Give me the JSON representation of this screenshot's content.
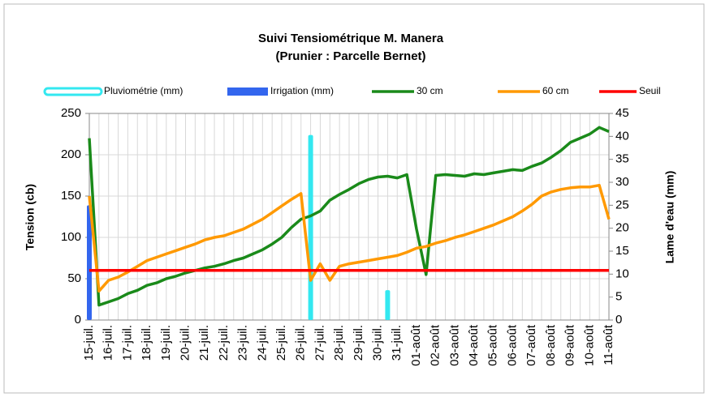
{
  "chart_data": {
    "type": "combo",
    "title": "Suivi Tensiométrique M. Manera",
    "subtitle": "(Prunier : Parcelle Bernet)",
    "y_label": "Tension (cb)",
    "y2_label": "Lame d'eau (mm)",
    "categories": [
      "15-juil.",
      null,
      "16-juil.",
      null,
      "17-juil.",
      null,
      "18-juil.",
      null,
      "19-juil.",
      null,
      "20-juil.",
      null,
      "21-juil.",
      null,
      "22-juil.",
      null,
      "23-juil.",
      null,
      "24-juil.",
      null,
      "25-juil.",
      null,
      "26-juil.",
      null,
      "27-juil.",
      null,
      "28-juil.",
      null,
      "29-juil.",
      null,
      "30-juil.",
      null,
      "31-juil.",
      null,
      "01-août",
      null,
      "02-août",
      null,
      "03-août",
      null,
      "04-août",
      null,
      "05-août",
      null,
      "06-août",
      null,
      "07-août",
      null,
      "08-août",
      null,
      "09-août",
      null,
      "10-août",
      null,
      "11-août"
    ],
    "ylim": [
      0,
      250
    ],
    "yticks": [
      0,
      50,
      100,
      150,
      200,
      250
    ],
    "y2lim": [
      0,
      45
    ],
    "y2ticks": [
      0,
      5,
      10,
      15,
      20,
      25,
      30,
      35,
      40,
      45
    ],
    "grid": true,
    "legend": "top",
    "series": [
      {
        "name": "Pluviométrie (mm)",
        "kind": "bar",
        "axis": "y2",
        "color": "#33e8f0",
        "values": [
          null,
          null,
          null,
          null,
          null,
          null,
          null,
          null,
          null,
          null,
          null,
          null,
          null,
          null,
          null,
          null,
          null,
          null,
          null,
          null,
          null,
          null,
          null,
          40.3,
          null,
          null,
          null,
          null,
          null,
          null,
          null,
          6.5,
          null,
          null,
          null,
          null,
          null,
          null,
          null,
          null,
          null,
          null,
          null,
          null,
          null,
          null,
          null,
          null,
          null,
          null,
          null,
          null,
          null,
          null,
          null
        ]
      },
      {
        "name": "Irrigation (mm)",
        "kind": "bar",
        "axis": "y2",
        "color": "#3366ee",
        "values": [
          25,
          null,
          null,
          null,
          null,
          null,
          null,
          null,
          null,
          null,
          null,
          null,
          null,
          null,
          null,
          null,
          null,
          null,
          null,
          null,
          null,
          null,
          null,
          null,
          null,
          null,
          null,
          null,
          null,
          null,
          null,
          null,
          null,
          null,
          null,
          null,
          null,
          null,
          null,
          null,
          null,
          null,
          null,
          null,
          null,
          null,
          null,
          null,
          null,
          null,
          null,
          null,
          null,
          null,
          null
        ]
      },
      {
        "name": "30 cm",
        "kind": "line",
        "color": "#1a8a1a",
        "values": [
          220,
          18,
          22,
          26,
          32,
          36,
          42,
          45,
          50,
          53,
          57,
          60,
          63,
          65,
          68,
          72,
          75,
          80,
          85,
          92,
          100,
          112,
          122,
          126,
          132,
          145,
          152,
          158,
          165,
          170,
          173,
          174,
          172,
          176,
          110,
          55,
          175,
          176,
          175,
          174,
          177,
          176,
          178,
          180,
          182,
          181,
          186,
          190,
          197,
          205,
          215,
          220,
          225,
          233,
          228
        ]
      },
      {
        "name": "60 cm",
        "kind": "line",
        "color": "#ff9900",
        "values": [
          150,
          35,
          48,
          52,
          58,
          65,
          72,
          76,
          80,
          84,
          88,
          92,
          97,
          100,
          102,
          106,
          110,
          116,
          122,
          130,
          138,
          146,
          153,
          48,
          68,
          48,
          65,
          68,
          70,
          72,
          74,
          76,
          78,
          82,
          87,
          89,
          93,
          96,
          100,
          103,
          107,
          111,
          115,
          120,
          125,
          132,
          140,
          150,
          155,
          158,
          160,
          161,
          161,
          163,
          122
        ]
      },
      {
        "name": "Seuil",
        "kind": "line",
        "color": "#ff0000",
        "values": [
          60,
          60,
          60,
          60,
          60,
          60,
          60,
          60,
          60,
          60,
          60,
          60,
          60,
          60,
          60,
          60,
          60,
          60,
          60,
          60,
          60,
          60,
          60,
          60,
          60,
          60,
          60,
          60,
          60,
          60,
          60,
          60,
          60,
          60,
          60,
          60,
          60,
          60,
          60,
          60,
          60,
          60,
          60,
          60,
          60,
          60,
          60,
          60,
          60,
          60,
          60,
          60,
          60,
          60,
          60
        ]
      }
    ]
  }
}
